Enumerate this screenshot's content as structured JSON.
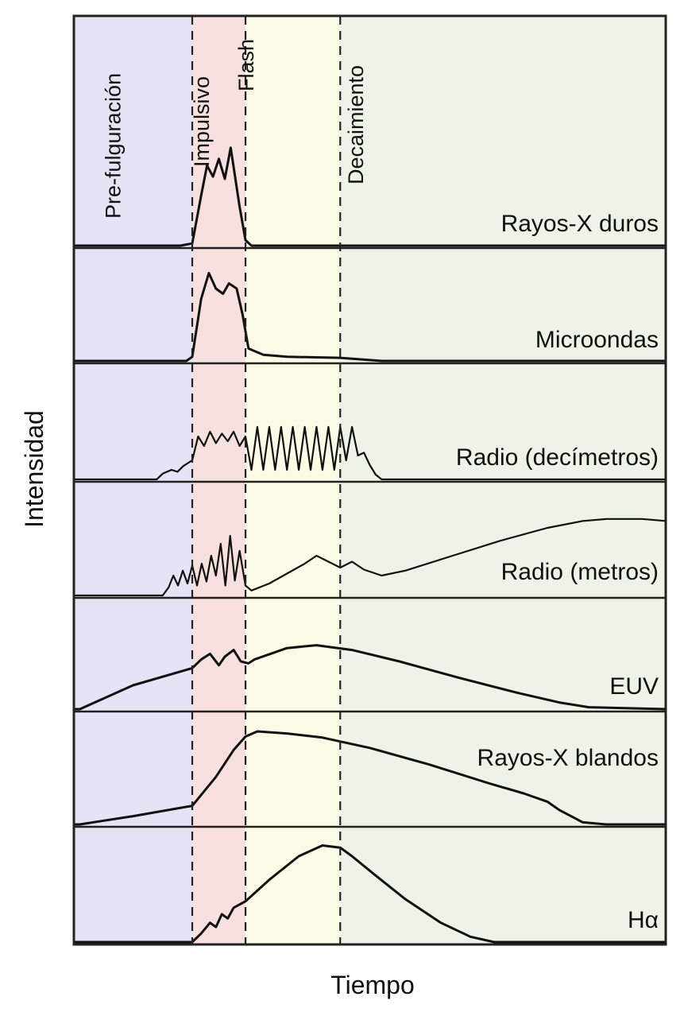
{
  "chart_data": {
    "type": "line",
    "title": "",
    "xlabel": "Tiempo",
    "ylabel": "Intensidad",
    "phases": [
      {
        "name": "Pre-fulguración",
        "color": "#e6e3f6"
      },
      {
        "name": "Impulsivo",
        "color": "#f7e0dd"
      },
      {
        "name": "Flash",
        "color": "#fbfbe6"
      },
      {
        "name": "Decaimiento",
        "color": "#edf3e6"
      }
    ],
    "phase_boundaries": [
      0.2,
      0.29,
      0.45
    ],
    "series": [
      {
        "name": "Rayos-X duros",
        "x": [
          0.0,
          0.18,
          0.2,
          0.215,
          0.225,
          0.235,
          0.245,
          0.255,
          0.265,
          0.28,
          0.29,
          0.3,
          1.0
        ],
        "y": [
          0.0,
          0.0,
          0.02,
          0.45,
          0.72,
          0.62,
          0.78,
          0.6,
          0.88,
          0.35,
          0.05,
          0.0,
          0.0
        ]
      },
      {
        "name": "Microondas",
        "x": [
          0.0,
          0.19,
          0.2,
          0.215,
          0.228,
          0.24,
          0.252,
          0.262,
          0.275,
          0.285,
          0.295,
          0.32,
          0.36,
          0.45,
          0.52,
          1.0
        ],
        "y": [
          0.0,
          0.0,
          0.04,
          0.6,
          0.85,
          0.7,
          0.65,
          0.75,
          0.7,
          0.45,
          0.12,
          0.06,
          0.04,
          0.03,
          0.0,
          0.0
        ]
      },
      {
        "name": "Radio (decímetros)",
        "x": [
          0.0,
          0.14,
          0.15,
          0.165,
          0.175,
          0.185,
          0.2,
          0.21,
          0.22,
          0.23,
          0.24,
          0.25,
          0.26,
          0.27,
          0.28,
          0.29,
          0.3,
          0.31,
          0.32,
          0.33,
          0.34,
          0.35,
          0.36,
          0.37,
          0.38,
          0.39,
          0.4,
          0.41,
          0.42,
          0.43,
          0.44,
          0.45,
          0.46,
          0.47,
          0.48,
          0.49,
          0.5,
          0.51,
          0.52,
          1.0
        ],
        "y": [
          0.0,
          0.0,
          0.06,
          0.1,
          0.08,
          0.14,
          0.2,
          0.45,
          0.35,
          0.5,
          0.38,
          0.48,
          0.4,
          0.5,
          0.35,
          0.45,
          0.1,
          0.55,
          0.1,
          0.55,
          0.1,
          0.55,
          0.1,
          0.55,
          0.1,
          0.55,
          0.1,
          0.55,
          0.1,
          0.55,
          0.1,
          0.55,
          0.2,
          0.55,
          0.25,
          0.28,
          0.15,
          0.05,
          0.0,
          0.0
        ]
      },
      {
        "name": "Radio (metros)",
        "x": [
          0.0,
          0.15,
          0.16,
          0.168,
          0.176,
          0.184,
          0.192,
          0.2,
          0.208,
          0.216,
          0.224,
          0.232,
          0.24,
          0.248,
          0.256,
          0.264,
          0.272,
          0.28,
          0.29,
          0.3,
          0.33,
          0.36,
          0.39,
          0.41,
          0.43,
          0.45,
          0.47,
          0.49,
          0.52,
          0.56,
          0.64,
          0.72,
          0.8,
          0.86,
          0.9,
          0.96,
          1.0
        ],
        "y": [
          0.0,
          0.0,
          0.08,
          0.2,
          0.1,
          0.25,
          0.12,
          0.3,
          0.1,
          0.32,
          0.14,
          0.4,
          0.2,
          0.52,
          0.1,
          0.6,
          0.15,
          0.45,
          0.1,
          0.05,
          0.12,
          0.22,
          0.32,
          0.4,
          0.34,
          0.28,
          0.34,
          0.26,
          0.2,
          0.25,
          0.4,
          0.55,
          0.68,
          0.75,
          0.77,
          0.77,
          0.75
        ]
      },
      {
        "name": "EUV",
        "x": [
          0.0,
          0.01,
          0.1,
          0.2,
          0.215,
          0.23,
          0.245,
          0.255,
          0.27,
          0.282,
          0.295,
          0.305,
          0.36,
          0.41,
          0.47,
          0.55,
          0.65,
          0.75,
          0.82,
          0.87,
          1.0
        ],
        "y": [
          0.0,
          0.0,
          0.25,
          0.43,
          0.52,
          0.58,
          0.46,
          0.55,
          0.62,
          0.5,
          0.48,
          0.52,
          0.64,
          0.67,
          0.62,
          0.5,
          0.33,
          0.17,
          0.07,
          0.02,
          0.0
        ]
      },
      {
        "name": "Rayos-X blandos",
        "x": [
          0.0,
          0.01,
          0.1,
          0.2,
          0.24,
          0.27,
          0.29,
          0.31,
          0.36,
          0.42,
          0.5,
          0.6,
          0.7,
          0.76,
          0.8,
          0.82,
          0.86,
          0.9,
          1.0
        ],
        "y": [
          0.0,
          0.0,
          0.08,
          0.18,
          0.46,
          0.72,
          0.85,
          0.9,
          0.88,
          0.84,
          0.74,
          0.58,
          0.4,
          0.3,
          0.22,
          0.14,
          0.02,
          0.0,
          0.0
        ]
      },
      {
        "name": "Hα",
        "x": [
          0.0,
          0.2,
          0.215,
          0.23,
          0.24,
          0.25,
          0.26,
          0.27,
          0.29,
          0.33,
          0.38,
          0.42,
          0.45,
          0.47,
          0.51,
          0.56,
          0.62,
          0.67,
          0.71,
          1.0
        ],
        "y": [
          0.0,
          0.0,
          0.08,
          0.18,
          0.14,
          0.26,
          0.22,
          0.32,
          0.38,
          0.58,
          0.8,
          0.9,
          0.88,
          0.8,
          0.62,
          0.4,
          0.18,
          0.05,
          0.0,
          0.0
        ]
      }
    ],
    "xlim": [
      0,
      1
    ],
    "ylim": [
      0,
      1
    ],
    "grid": false,
    "legend": "none"
  }
}
